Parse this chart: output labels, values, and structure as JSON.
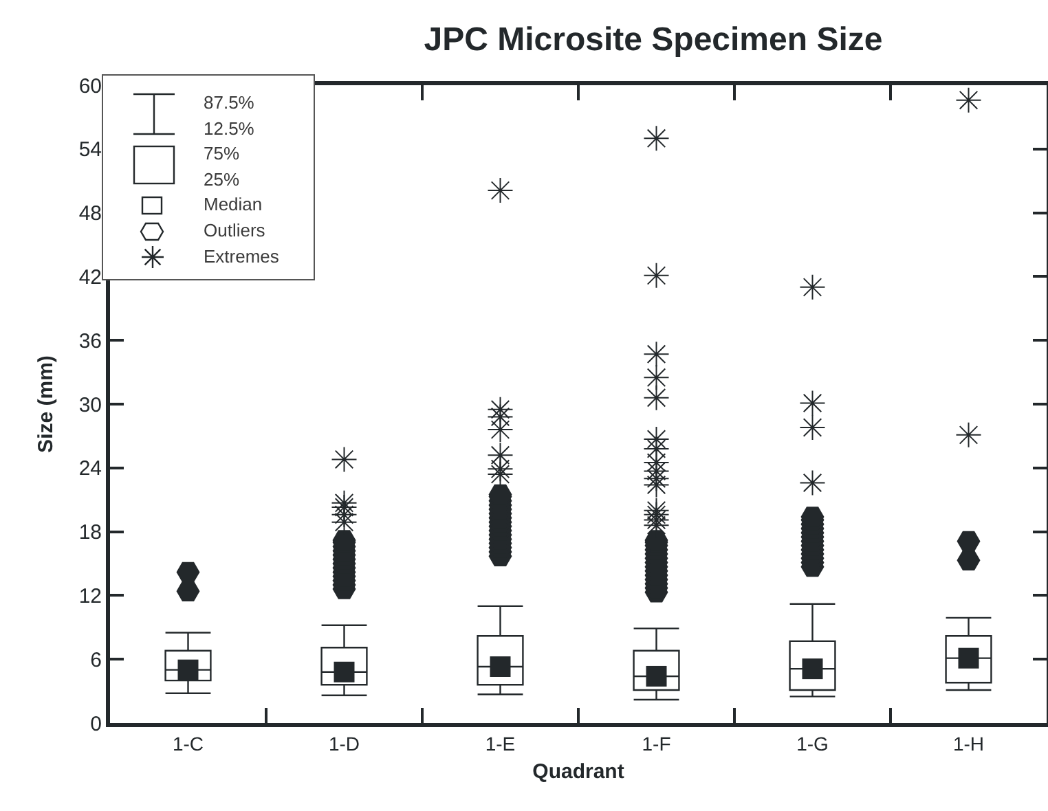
{
  "chart_data": {
    "type": "box",
    "title": "JPC Microsite Specimen Size",
    "xlabel": "Quadrant",
    "ylabel": "Size (mm)",
    "categories": [
      "1-C",
      "1-D",
      "1-E",
      "1-F",
      "1-G",
      "1-H"
    ],
    "ylim": [
      0,
      60
    ],
    "yticks": [
      0,
      6,
      12,
      18,
      24,
      30,
      36,
      42,
      48,
      54,
      60
    ],
    "legend": "top left",
    "series": [
      {
        "color": "#23282b",
        "boxes": [
          {
            "low": 2.8,
            "q1": 4.0,
            "median": 5.0,
            "q3": 6.8,
            "high": 8.5,
            "outliers": [
              12.4,
              14.2
            ]
          },
          {
            "low": 2.6,
            "q1": 3.6,
            "median": 4.8,
            "q3": 7.1,
            "high": 9.2,
            "outliers": [
              12.6,
              13.0,
              13.4,
              13.8,
              14.2,
              14.6,
              15.0,
              15.4,
              15.8,
              16.2,
              16.6,
              17.0,
              17.2
            ]
          },
          {
            "low": 2.7,
            "q1": 3.6,
            "median": 5.3,
            "q3": 8.2,
            "high": 11.0,
            "outliers": [
              15.7,
              16.1,
              16.5,
              16.9,
              17.3,
              17.7,
              18.1,
              18.5,
              18.9,
              19.3,
              19.7,
              20.1,
              20.5,
              20.9,
              21.3,
              21.5
            ]
          },
          {
            "low": 2.2,
            "q1": 3.1,
            "median": 4.4,
            "q3": 6.8,
            "high": 8.9,
            "outliers": [
              12.3,
              12.7,
              13.1,
              13.5,
              13.9,
              14.3,
              14.7,
              15.1,
              15.5,
              15.9,
              16.3,
              16.7,
              17.0,
              17.2
            ]
          },
          {
            "low": 2.5,
            "q1": 3.1,
            "median": 5.1,
            "q3": 7.7,
            "high": 11.2,
            "outliers": [
              14.7,
              15.1,
              15.5,
              15.9,
              16.3,
              16.7,
              17.1,
              17.5,
              17.9,
              18.3,
              18.7,
              19.1,
              19.4
            ]
          },
          {
            "low": 3.1,
            "q1": 3.8,
            "median": 6.1,
            "q3": 8.2,
            "high": 9.9,
            "outliers": [
              15.3,
              17.1
            ]
          }
        ]
      },
      {
        "type": "scatter",
        "color": "#23282b",
        "marker": "square",
        "x": [
          "1-C",
          "1-D",
          "1-E",
          "1-F",
          "1-G",
          "1-H"
        ],
        "values": [
          5.0,
          4.8,
          5.3,
          4.4,
          5.1,
          6.1
        ]
      },
      {
        "type": "scatter",
        "name": "Extremes",
        "color": "#23282b",
        "marker": "cross",
        "x": [
          "1-D",
          "1-D",
          "1-D",
          "1-D",
          "1-D",
          "1-E",
          "1-E",
          "1-E",
          "1-E",
          "1-E",
          "1-E",
          "1-E",
          "1-F",
          "1-F",
          "1-F",
          "1-F",
          "1-F",
          "1-F",
          "1-F",
          "1-F",
          "1-F",
          "1-F",
          "1-F",
          "1-F",
          "1-F",
          "1-F",
          "1-F",
          "1-G",
          "1-G",
          "1-G",
          "1-G",
          "1-H",
          "1-H"
        ],
        "values": [
          24.8,
          20.7,
          20.3,
          19.6,
          18.9,
          50.1,
          29.5,
          28.8,
          27.6,
          25.2,
          23.9,
          23.4,
          55,
          42.1,
          34.7,
          32.5,
          30.6,
          26.7,
          25.8,
          24.5,
          23.7,
          23.0,
          22.4,
          20.0,
          19.6,
          19.1,
          18.6,
          41.0,
          30.1,
          27.8,
          22.6,
          58.6,
          27.1
        ]
      }
    ],
    "annotations": [
      "87.5%",
      "12.5%",
      "75%",
      "25%",
      "Median",
      "Outliers"
    ]
  }
}
